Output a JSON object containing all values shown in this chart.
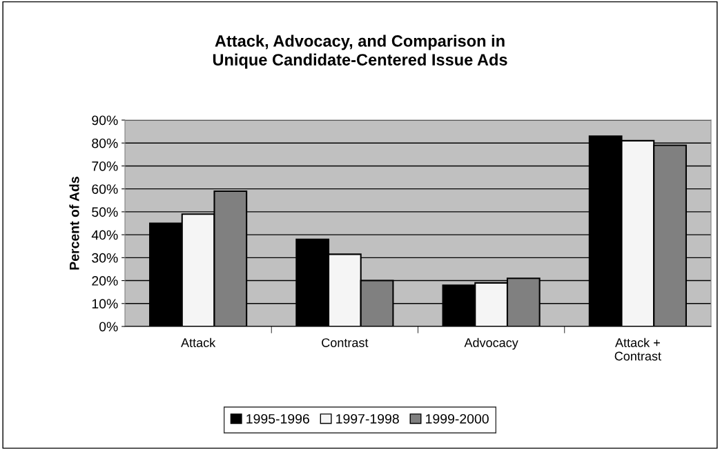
{
  "chart_data": {
    "type": "bar",
    "title": "Attack, Advocacy, and Comparison in\nUnique Candidate-Centered Issue Ads",
    "ylabel": "Percent of Ads",
    "categories": [
      "Attack",
      "Contrast",
      "Advocacy",
      "Attack +\nContrast"
    ],
    "series": [
      {
        "name": "1995-1996",
        "color": "#000000",
        "values": [
          45,
          38,
          18,
          83
        ]
      },
      {
        "name": "1997-1998",
        "color": "#f5f5f5",
        "values": [
          49,
          31.5,
          19,
          81
        ]
      },
      {
        "name": "1999-2000",
        "color": "#808080",
        "values": [
          59,
          20,
          21,
          79
        ]
      }
    ],
    "ylim": [
      0,
      90
    ],
    "yticks": [
      {
        "value": 0,
        "label": "0%"
      },
      {
        "value": 10,
        "label": "10%"
      },
      {
        "value": 20,
        "label": "20%"
      },
      {
        "value": 30,
        "label": "30%"
      },
      {
        "value": 40,
        "label": "40%"
      },
      {
        "value": 50,
        "label": "50%"
      },
      {
        "value": 60,
        "label": "60%"
      },
      {
        "value": 70,
        "label": "70%"
      },
      {
        "value": 80,
        "label": "80%"
      },
      {
        "value": 90,
        "label": "90%"
      }
    ],
    "grid": "y",
    "legend": "bottom"
  }
}
